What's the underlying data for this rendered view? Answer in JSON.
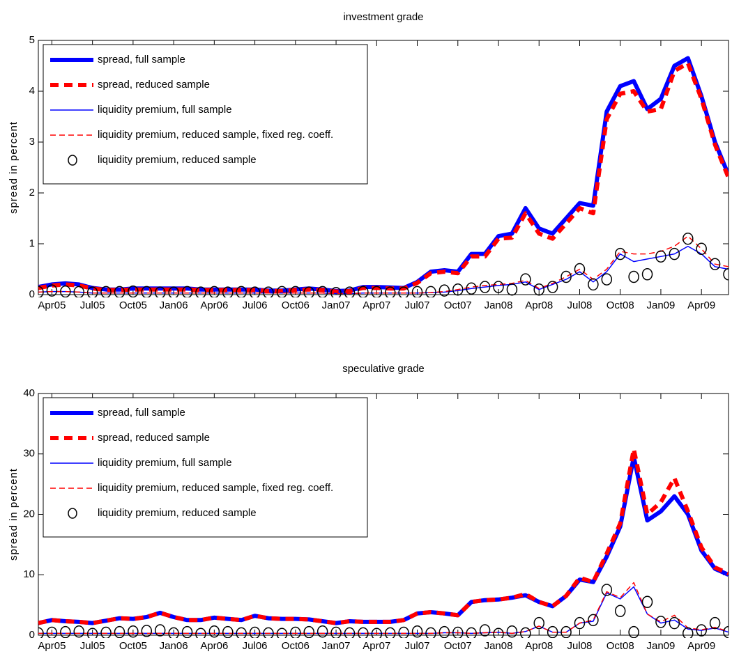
{
  "chart_data": [
    {
      "type": "line",
      "title": "investment grade",
      "ylabel": "spread in percent",
      "categories": [
        null,
        "Apr05",
        null,
        null,
        "Jul05",
        null,
        null,
        "Oct05",
        null,
        null,
        "Jan06",
        null,
        null,
        "Apr06",
        null,
        null,
        "Jul06",
        null,
        null,
        "Oct06",
        null,
        null,
        "Jan07",
        null,
        null,
        "Apr07",
        null,
        null,
        "Jul07",
        null,
        null,
        "Oct07",
        null,
        null,
        "Jan08",
        null,
        null,
        "Apr08",
        null,
        null,
        "Jul08",
        null,
        null,
        "Oct08",
        null,
        null,
        "Jan09",
        null,
        null,
        "Apr09",
        null,
        null
      ],
      "ylim": [
        0,
        5
      ],
      "yticks": [
        0,
        1,
        2,
        3,
        4,
        5
      ],
      "legend": "upper left",
      "series": [
        {
          "name": "spread, full sample",
          "color": "#0000ff",
          "style": "thick",
          "values": [
            0.15,
            0.2,
            0.22,
            0.2,
            0.13,
            0.1,
            0.1,
            0.12,
            0.12,
            0.12,
            0.12,
            0.12,
            0.1,
            0.1,
            0.1,
            0.1,
            0.1,
            0.08,
            0.08,
            0.1,
            0.12,
            0.1,
            0.07,
            0.08,
            0.15,
            0.15,
            0.14,
            0.13,
            0.25,
            0.45,
            0.48,
            0.45,
            0.8,
            0.8,
            1.15,
            1.2,
            1.7,
            1.3,
            1.2,
            1.5,
            1.8,
            1.75,
            3.6,
            4.1,
            4.2,
            3.65,
            3.85,
            4.5,
            4.65,
            3.9,
            3.0,
            2.35
          ]
        },
        {
          "name": "spread, reduced sample",
          "color": "#ff0000",
          "style": "thick-dashed",
          "values": [
            0.13,
            0.18,
            0.2,
            0.18,
            0.12,
            0.09,
            0.09,
            0.1,
            0.1,
            0.1,
            0.1,
            0.1,
            0.09,
            0.09,
            0.09,
            0.09,
            0.09,
            0.07,
            0.07,
            0.09,
            0.1,
            0.09,
            0.06,
            0.07,
            0.13,
            0.13,
            0.12,
            0.12,
            0.23,
            0.42,
            0.45,
            0.42,
            0.75,
            0.75,
            1.1,
            1.12,
            1.6,
            1.2,
            1.1,
            1.4,
            1.7,
            1.6,
            3.45,
            3.95,
            4.0,
            3.6,
            3.65,
            4.4,
            4.55,
            3.85,
            2.95,
            2.3
          ]
        },
        {
          "name": "liquidity premium, full sample",
          "color": "#0000ff",
          "style": "thin",
          "values": [
            0.05,
            0.06,
            0.06,
            0.05,
            0.03,
            0.03,
            0.03,
            0.03,
            0.03,
            0.03,
            0.03,
            0.03,
            0.03,
            0.03,
            0.03,
            0.03,
            0.03,
            0.03,
            0.03,
            0.03,
            0.03,
            0.03,
            0.02,
            0.02,
            0.03,
            0.03,
            0.03,
            0.03,
            0.03,
            0.04,
            0.05,
            0.08,
            0.12,
            0.15,
            0.18,
            0.2,
            0.25,
            0.1,
            0.2,
            0.3,
            0.45,
            0.25,
            0.45,
            0.8,
            0.65,
            0.7,
            0.75,
            0.8,
            0.95,
            0.8,
            0.55,
            0.5
          ]
        },
        {
          "name": "liquidity premium, reduced sample, fixed reg. coeff.",
          "color": "#ff0000",
          "style": "thin-dashed",
          "values": [
            0.05,
            0.06,
            0.06,
            0.05,
            0.03,
            0.03,
            0.03,
            0.03,
            0.03,
            0.03,
            0.03,
            0.03,
            0.03,
            0.03,
            0.03,
            0.03,
            0.03,
            0.03,
            0.03,
            0.03,
            0.03,
            0.03,
            0.02,
            0.02,
            0.03,
            0.03,
            0.03,
            0.03,
            0.03,
            0.04,
            0.06,
            0.1,
            0.15,
            0.18,
            0.2,
            0.22,
            0.28,
            0.12,
            0.22,
            0.35,
            0.5,
            0.3,
            0.5,
            0.85,
            0.8,
            0.8,
            0.85,
            0.95,
            1.15,
            0.9,
            0.6,
            0.55
          ]
        },
        {
          "name": "liquidity premium, reduced sample",
          "color": "#000000",
          "style": "circles",
          "values": [
            0.05,
            0.08,
            0.06,
            0.05,
            0.04,
            0.05,
            0.05,
            0.06,
            0.05,
            0.04,
            0.04,
            0.05,
            0.04,
            0.05,
            0.04,
            0.05,
            0.04,
            0.04,
            0.05,
            0.05,
            0.04,
            0.05,
            0.03,
            0.04,
            0.05,
            0.05,
            0.04,
            0.04,
            0.05,
            0.05,
            0.08,
            0.1,
            0.12,
            0.15,
            0.15,
            0.1,
            0.3,
            0.1,
            0.15,
            0.35,
            0.5,
            0.2,
            0.3,
            0.8,
            0.35,
            0.4,
            0.75,
            0.8,
            1.1,
            0.9,
            0.6,
            0.4
          ]
        }
      ]
    },
    {
      "type": "line",
      "title": "speculative grade",
      "ylabel": "spread in percent",
      "categories": [
        null,
        "Apr05",
        null,
        null,
        "Jul05",
        null,
        null,
        "Oct05",
        null,
        null,
        "Jan06",
        null,
        null,
        "Apr06",
        null,
        null,
        "Jul06",
        null,
        null,
        "Oct06",
        null,
        null,
        "Jan07",
        null,
        null,
        "Apr07",
        null,
        null,
        "Jul07",
        null,
        null,
        "Oct07",
        null,
        null,
        "Jan08",
        null,
        null,
        "Apr08",
        null,
        null,
        "Jul08",
        null,
        null,
        "Oct08",
        null,
        null,
        "Jan09",
        null,
        null,
        "Apr09",
        null,
        null
      ],
      "ylim": [
        0,
        40
      ],
      "yticks": [
        0,
        10,
        20,
        30,
        40
      ],
      "legend": "upper left",
      "series": [
        {
          "name": "spread, full sample",
          "color": "#0000ff",
          "style": "thick",
          "values": [
            2,
            2.5,
            2.3,
            2.2,
            2,
            2.4,
            2.8,
            2.7,
            3.0,
            3.7,
            3.0,
            2.5,
            2.5,
            2.9,
            2.7,
            2.5,
            3.2,
            2.8,
            2.7,
            2.7,
            2.6,
            2.3,
            2.0,
            2.3,
            2.2,
            2.2,
            2.2,
            2.5,
            3.6,
            3.8,
            3.6,
            3.3,
            5.5,
            5.8,
            5.9,
            6.2,
            6.6,
            5.5,
            4.8,
            6.5,
            9.2,
            8.8,
            13,
            18,
            29.5,
            19,
            20.5,
            23,
            20,
            14,
            11,
            10
          ]
        },
        {
          "name": "spread, reduced sample",
          "color": "#ff0000",
          "style": "thick-dashed",
          "values": [
            2,
            2.5,
            2.3,
            2.2,
            2,
            2.4,
            2.8,
            2.7,
            3.0,
            3.7,
            3.0,
            2.5,
            2.5,
            2.9,
            2.7,
            2.5,
            3.2,
            2.8,
            2.7,
            2.7,
            2.6,
            2.3,
            2.0,
            2.3,
            2.2,
            2.2,
            2.2,
            2.5,
            3.6,
            3.8,
            3.6,
            3.3,
            5.5,
            5.8,
            5.9,
            6.2,
            6.8,
            5.5,
            4.8,
            6.5,
            9.5,
            8.8,
            13.5,
            18.5,
            30.8,
            20,
            22,
            26,
            20.5,
            14.5,
            11.2,
            10.2
          ]
        },
        {
          "name": "liquidity premium, full sample",
          "color": "#0000ff",
          "style": "thin",
          "values": [
            0.3,
            0.3,
            0.3,
            0.3,
            0.3,
            0.3,
            0.3,
            0.3,
            0.3,
            0.3,
            0.3,
            0.3,
            0.3,
            0.3,
            0.3,
            0.3,
            0.3,
            0.3,
            0.3,
            0.3,
            0.3,
            0.3,
            0.3,
            0.3,
            0.3,
            0.3,
            0.3,
            0.3,
            0.3,
            0.3,
            0.4,
            0.4,
            0.3,
            0.4,
            0.5,
            0.3,
            0.6,
            1.5,
            0.5,
            0.5,
            2,
            2.3,
            7,
            6,
            8,
            3.5,
            2.0,
            2.5,
            1.0,
            0.8,
            1.2,
            0.5
          ]
        },
        {
          "name": "liquidity premium, reduced sample, fixed reg. coeff.",
          "color": "#ff0000",
          "style": "thin-dashed",
          "values": [
            0.3,
            0.3,
            0.3,
            0.3,
            0.3,
            0.3,
            0.3,
            0.3,
            0.3,
            0.3,
            0.3,
            0.3,
            0.3,
            0.3,
            0.3,
            0.3,
            0.3,
            0.3,
            0.3,
            0.3,
            0.3,
            0.3,
            0.3,
            0.3,
            0.3,
            0.3,
            0.3,
            0.3,
            0.3,
            0.3,
            0.4,
            0.4,
            0.3,
            0.4,
            0.5,
            0.3,
            0.6,
            1.5,
            0.5,
            0.5,
            2,
            2.5,
            7.2,
            6.2,
            8.7,
            3.5,
            2.2,
            3.3,
            1.2,
            0.9,
            1.3,
            0.6
          ]
        },
        {
          "name": "liquidity premium, reduced sample",
          "color": "#000000",
          "style": "circles",
          "values": [
            0.3,
            0.4,
            0.5,
            0.6,
            0.2,
            0.4,
            0.5,
            0.6,
            0.7,
            0.8,
            0.3,
            0.5,
            0.2,
            0.6,
            0.5,
            0.3,
            0.4,
            0.3,
            0.2,
            0.4,
            0.5,
            0.6,
            0.4,
            0.3,
            0.3,
            0.2,
            0.3,
            0.4,
            0.6,
            0.3,
            0.5,
            0.4,
            0.3,
            0.8,
            0.2,
            0.6,
            0.3,
            2,
            0.5,
            0.5,
            2,
            2.5,
            7.5,
            4,
            0.5,
            5.5,
            2.2,
            2,
            0.3,
            0.8,
            2,
            0.5
          ]
        }
      ]
    }
  ]
}
